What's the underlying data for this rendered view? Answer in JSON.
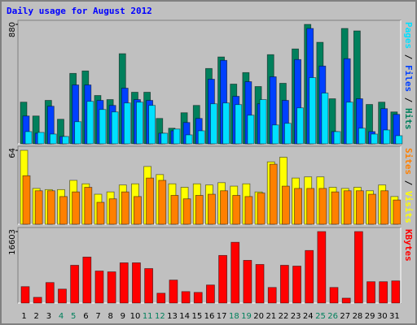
{
  "chart_data": [
    {
      "type": "bar",
      "title": "Daily usage for August 2012",
      "ylim": [
        0,
        880
      ],
      "yticks": [
        880
      ],
      "legend_separator": " / ",
      "series": [
        {
          "name": "Hits",
          "color": "#00805c",
          "values": [
            307,
            205,
            320,
            181,
            519,
            537,
            356,
            326,
            664,
            380,
            380,
            187,
            115,
            229,
            283,
            555,
            640,
            440,
            525,
            422,
            657,
            446,
            699,
            880,
            748,
            332,
            850,
            832,
            290,
            307,
            235
          ]
        },
        {
          "name": "Files",
          "color": "#0040ff",
          "values": [
            205,
            78,
            277,
            54,
            434,
            434,
            320,
            283,
            410,
            326,
            320,
            78,
            96,
            157,
            187,
            476,
            615,
            350,
            458,
            295,
            494,
            320,
            621,
            850,
            573,
            90,
            627,
            332,
            90,
            259,
            217
          ]
        },
        {
          "name": "Pages",
          "color": "#00e0ff",
          "values": [
            90,
            84,
            72,
            54,
            163,
            313,
            253,
            235,
            301,
            307,
            283,
            78,
            109,
            66,
            96,
            295,
            301,
            289,
            211,
            326,
            139,
            151,
            265,
            488,
            374,
            90,
            307,
            115,
            72,
            102,
            60
          ]
        }
      ]
    },
    {
      "type": "bar",
      "ylim": [
        0,
        64
      ],
      "yticks": [
        64
      ],
      "legend_separator": " / ",
      "series": [
        {
          "name": "Visits",
          "color": "#ffff00",
          "values": [
            64,
            31,
            30,
            30,
            38,
            35,
            26,
            28,
            34,
            35,
            50,
            43,
            35,
            32,
            35,
            34,
            36,
            33,
            35,
            28,
            54,
            58,
            40,
            41,
            41,
            32,
            31,
            32,
            29,
            34,
            24
          ]
        },
        {
          "name": "Sites",
          "color": "#ff8000",
          "values": [
            42,
            29,
            29,
            24,
            28,
            32,
            19,
            22,
            28,
            24,
            40,
            38,
            25,
            22,
            25,
            26,
            29,
            25,
            24,
            27,
            52,
            33,
            31,
            31,
            31,
            28,
            29,
            29,
            26,
            29,
            21
          ]
        }
      ]
    },
    {
      "type": "bar",
      "ylim": [
        0,
        16603
      ],
      "yticks": [
        16603
      ],
      "legend_separator": " / ",
      "categories": [
        "1",
        "2",
        "3",
        "4",
        "5",
        "6",
        "7",
        "8",
        "9",
        "10",
        "11",
        "12",
        "13",
        "14",
        "15",
        "16",
        "17",
        "18",
        "19",
        "20",
        "21",
        "22",
        "23",
        "24",
        "25",
        "26",
        "27",
        "28",
        "29",
        "30",
        "31"
      ],
      "category_colors": [
        "#000000",
        "#000000",
        "#000000",
        "#00805c",
        "#00805c",
        "#000000",
        "#000000",
        "#000000",
        "#000000",
        "#000000",
        "#00805c",
        "#00805c",
        "#000000",
        "#000000",
        "#000000",
        "#000000",
        "#000000",
        "#00805c",
        "#00805c",
        "#000000",
        "#000000",
        "#000000",
        "#000000",
        "#000000",
        "#00805c",
        "#00805c",
        "#000000",
        "#000000",
        "#000000",
        "#000000",
        "#000000"
      ],
      "series": [
        {
          "name": "KBytes",
          "color": "#ff0000",
          "values": [
            3816,
            1336,
            4770,
            3244,
            8777,
            10685,
            7441,
            7250,
            9349,
            9349,
            8014,
            2290,
            5342,
            2671,
            2480,
            4198,
            11066,
            14119,
            9922,
            8968,
            3625,
            8777,
            8586,
            12212,
            16603,
            3625,
            1145,
            16603,
            4961,
            4961,
            5152
          ]
        }
      ]
    }
  ]
}
